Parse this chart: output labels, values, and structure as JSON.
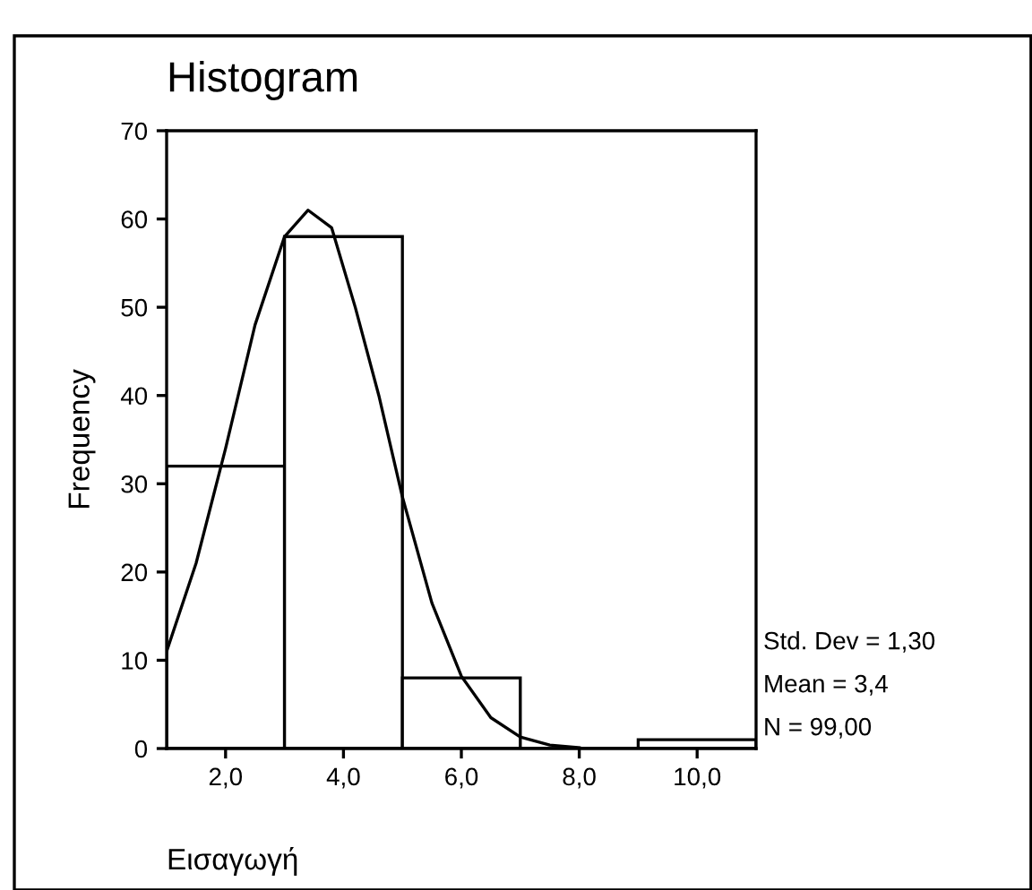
{
  "chart_data": {
    "type": "histogram",
    "title": "Histogram",
    "xlabel": "Εισαγωγή",
    "ylabel": "Frequency",
    "bins": [
      1,
      3,
      5,
      7,
      9,
      11
    ],
    "values": [
      32,
      58,
      8,
      0,
      1
    ],
    "color": "#ffffff",
    "series": [
      {
        "type": "line",
        "color": "#000000",
        "x": [
          1.0,
          1.5,
          2.0,
          2.5,
          3.0,
          3.4,
          3.8,
          4.2,
          4.6,
          5.0,
          5.5,
          6.0,
          6.5,
          7.0,
          7.5,
          8.0
        ],
        "values": [
          11,
          21,
          34,
          48,
          58,
          61,
          59,
          50,
          40,
          28.5,
          16.5,
          8.2,
          3.5,
          1.3,
          0.4,
          0.1
        ]
      }
    ],
    "xlim": [
      1,
      11
    ],
    "xticks": [
      {
        "value": 2,
        "label": "2,0"
      },
      {
        "value": 4,
        "label": "4,0"
      },
      {
        "value": 6,
        "label": "6,0"
      },
      {
        "value": 8,
        "label": "8,0"
      },
      {
        "value": 10,
        "label": "10,0"
      }
    ],
    "ylim": [
      0,
      70
    ],
    "yticks": [
      0,
      10,
      20,
      30,
      40,
      50,
      60,
      70
    ],
    "annotations": [
      "Std. Dev = 1,30",
      "Mean = 3,4",
      "N = 99,00"
    ],
    "grid": false,
    "legend": false
  }
}
